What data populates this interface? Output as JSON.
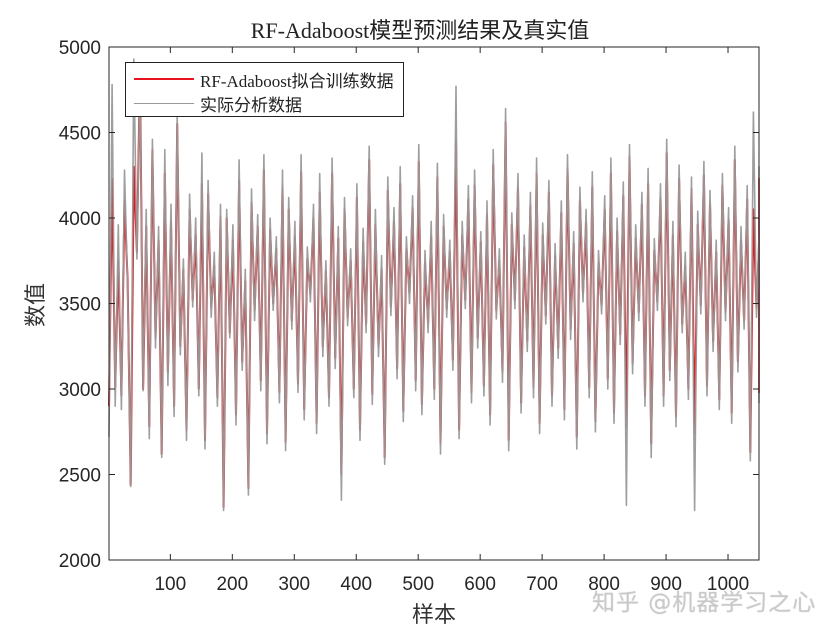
{
  "chart_data": {
    "type": "line",
    "title": "RF-Adaboost模型预测结果及真实值",
    "xlabel": "样本",
    "ylabel": "数值",
    "xlim": [
      1,
      1050
    ],
    "ylim": [
      2000,
      5000
    ],
    "xticks": [
      100,
      200,
      300,
      400,
      500,
      600,
      700,
      800,
      900,
      1000
    ],
    "yticks": [
      2000,
      2500,
      3000,
      3500,
      4000,
      4500,
      5000
    ],
    "grid": false,
    "legend_position": "upper left",
    "sample_step": 5,
    "series": [
      {
        "name": "RF-Adaboost拟合训练数据",
        "color": "#e8141c",
        "width": 2,
        "values": [
          2900,
          4230,
          3010,
          3750,
          2960,
          4100,
          3640,
          2440,
          4300,
          3800,
          4870,
          3000,
          3950,
          2780,
          4400,
          3300,
          3870,
          2620,
          4260,
          3100,
          3980,
          2900,
          4550,
          3250,
          3700,
          2760,
          4050,
          3520,
          3900,
          3000,
          4200,
          2700,
          4140,
          3480,
          3720,
          2950,
          4010,
          2310,
          4000,
          3330,
          3870,
          2850,
          4220,
          3160,
          3630,
          2420,
          4090,
          3460,
          3950,
          3050,
          4280,
          2740,
          3930,
          3500,
          3820,
          2980,
          4180,
          2690,
          4050,
          3400,
          3890,
          3030,
          4270,
          2880,
          3760,
          3560,
          4000,
          2800,
          4150,
          3250,
          3690,
          2950,
          4260,
          3180,
          3880,
          2500,
          4050,
          3420,
          3750,
          3000,
          4120,
          2760,
          3860,
          3380,
          4340,
          2970,
          3960,
          3250,
          3700,
          2600,
          4160,
          3480,
          3980,
          3120,
          4200,
          2870,
          3820,
          3560,
          4060,
          3050,
          4330,
          2910,
          3740,
          3390,
          3890,
          3000,
          4240,
          2680,
          3950,
          3470,
          3800,
          3170,
          4450,
          2760,
          3900,
          3520,
          4110,
          2980,
          4190,
          3300,
          3860,
          3020,
          4020,
          2850,
          4310,
          3460,
          3750,
          3100,
          4560,
          2700,
          3960,
          3520,
          4180,
          2920,
          3830,
          3280,
          4070,
          3010,
          4260,
          2800,
          3900,
          3430,
          4150,
          2960,
          3780,
          3240,
          4030,
          2880,
          4290,
          3350,
          3850,
          2720,
          4100,
          3560,
          3970,
          3010,
          4180,
          2810,
          3740,
          3490,
          4050,
          3060,
          4260,
          2860,
          3920,
          3320,
          4130,
          2780,
          4360,
          3150,
          3880,
          3450,
          4080,
          2960,
          4200,
          2680,
          3810,
          3510,
          4120,
          2960,
          4380,
          3110,
          3900,
          2840,
          4230,
          3380,
          3720,
          3000,
          4170,
          2740,
          3960,
          3490,
          4250,
          3020,
          4090,
          3280,
          3800,
          2940,
          4190,
          3450,
          3990,
          2860,
          4340,
          3160,
          3870,
          3400,
          4110,
          2630,
          4050,
          3470,
          3830,
          3080,
          4230,
          2980,
          3900,
          3300
        ]
      },
      {
        "name": "实际分析数据",
        "color": "#999999",
        "width": 1.6,
        "values": [
          2720,
          4780,
          2900,
          3960,
          2880,
          4280,
          3600,
          2430,
          4930,
          3760,
          4820,
          2990,
          4050,
          2710,
          4460,
          3240,
          3950,
          2600,
          4400,
          3020,
          4080,
          2840,
          4610,
          3200,
          3760,
          2700,
          4140,
          3480,
          4000,
          2960,
          4380,
          2650,
          4220,
          3420,
          3800,
          2900,
          4080,
          2290,
          4050,
          3300,
          3960,
          2790,
          4340,
          3110,
          3700,
          2380,
          4170,
          3400,
          4020,
          2990,
          4370,
          2680,
          4000,
          3460,
          3890,
          2920,
          4280,
          2640,
          4120,
          3350,
          3980,
          2980,
          4370,
          2820,
          3830,
          3510,
          4080,
          2740,
          4260,
          3190,
          3750,
          2900,
          4350,
          3120,
          3950,
          2350,
          4120,
          3370,
          3820,
          2950,
          4200,
          2700,
          3940,
          3330,
          4420,
          2910,
          4050,
          3190,
          3780,
          2560,
          4240,
          3430,
          4060,
          3060,
          4300,
          2810,
          3890,
          3500,
          4130,
          2990,
          4430,
          2850,
          3810,
          3330,
          3980,
          2940,
          4320,
          2620,
          4020,
          3420,
          3870,
          3110,
          4770,
          2710,
          3980,
          3470,
          4190,
          2920,
          4280,
          3240,
          3920,
          2960,
          4100,
          2790,
          4400,
          3410,
          3820,
          3040,
          4640,
          2640,
          4030,
          3470,
          4260,
          2860,
          3900,
          3220,
          4150,
          2950,
          4350,
          2740,
          3970,
          3380,
          4220,
          2900,
          3850,
          3180,
          4100,
          2820,
          4370,
          3290,
          3920,
          2650,
          4180,
          3510,
          4050,
          2950,
          4270,
          2750,
          3810,
          3440,
          4130,
          3000,
          4350,
          2800,
          4000,
          3260,
          4210,
          2320,
          4430,
          3090,
          3960,
          3400,
          4150,
          2900,
          4290,
          2600,
          3880,
          3460,
          4200,
          2900,
          4460,
          3050,
          3980,
          2780,
          4310,
          3330,
          3800,
          2940,
          4240,
          2290,
          4040,
          3440,
          4330,
          2960,
          4160,
          3220,
          3870,
          2880,
          4260,
          3400,
          4060,
          2800,
          4420,
          3100,
          3950,
          3350,
          4190,
          2580,
          4620,
          3420,
          3910,
          3020,
          4300,
          2920,
          4250,
          3260
        ]
      }
    ]
  },
  "watermark": "知乎 @机器学习之心"
}
